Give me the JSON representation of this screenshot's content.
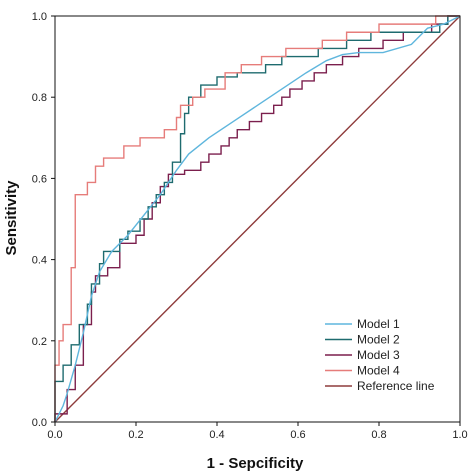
{
  "chart_data": {
    "type": "line",
    "xlabel": "1 - Sepcificity",
    "ylabel": "Sensitivity",
    "xlim": [
      0.0,
      1.0
    ],
    "ylim": [
      0.0,
      1.0
    ],
    "xticks": [
      "0.0",
      "0.2",
      "0.4",
      "0.6",
      "0.8",
      "1.0"
    ],
    "yticks": [
      "0.0",
      "0.2",
      "0.4",
      "0.6",
      "0.8",
      "1.0"
    ],
    "grid": false,
    "legend_position": "bottom-right",
    "series": [
      {
        "name": "Model 1",
        "color": "#5fb6dd",
        "step": false,
        "points": [
          [
            0,
            0
          ],
          [
            0.01,
            0.02
          ],
          [
            0.02,
            0.04
          ],
          [
            0.03,
            0.07
          ],
          [
            0.05,
            0.14
          ],
          [
            0.07,
            0.22
          ],
          [
            0.09,
            0.31
          ],
          [
            0.11,
            0.37
          ],
          [
            0.14,
            0.42
          ],
          [
            0.18,
            0.46
          ],
          [
            0.22,
            0.51
          ],
          [
            0.26,
            0.56
          ],
          [
            0.3,
            0.62
          ],
          [
            0.33,
            0.66
          ],
          [
            0.38,
            0.7
          ],
          [
            0.44,
            0.74
          ],
          [
            0.5,
            0.78
          ],
          [
            0.56,
            0.82
          ],
          [
            0.62,
            0.86
          ],
          [
            0.67,
            0.89
          ],
          [
            0.71,
            0.905
          ],
          [
            0.75,
            0.91
          ],
          [
            0.81,
            0.91
          ],
          [
            0.88,
            0.93
          ],
          [
            0.92,
            0.97
          ],
          [
            0.96,
            0.98
          ],
          [
            1.0,
            1.0
          ]
        ]
      },
      {
        "name": "Model 2",
        "color": "#1e6b6f",
        "step": true,
        "points": [
          [
            0,
            0
          ],
          [
            0,
            0.1
          ],
          [
            0.02,
            0.1
          ],
          [
            0.02,
            0.14
          ],
          [
            0.04,
            0.14
          ],
          [
            0.04,
            0.19
          ],
          [
            0.06,
            0.19
          ],
          [
            0.06,
            0.24
          ],
          [
            0.08,
            0.24
          ],
          [
            0.08,
            0.29
          ],
          [
            0.09,
            0.29
          ],
          [
            0.09,
            0.34
          ],
          [
            0.11,
            0.34
          ],
          [
            0.11,
            0.39
          ],
          [
            0.12,
            0.39
          ],
          [
            0.12,
            0.42
          ],
          [
            0.16,
            0.42
          ],
          [
            0.16,
            0.45
          ],
          [
            0.18,
            0.45
          ],
          [
            0.18,
            0.47
          ],
          [
            0.21,
            0.47
          ],
          [
            0.21,
            0.5
          ],
          [
            0.23,
            0.5
          ],
          [
            0.23,
            0.53
          ],
          [
            0.25,
            0.53
          ],
          [
            0.25,
            0.56
          ],
          [
            0.27,
            0.56
          ],
          [
            0.27,
            0.59
          ],
          [
            0.29,
            0.59
          ],
          [
            0.29,
            0.64
          ],
          [
            0.31,
            0.64
          ],
          [
            0.31,
            0.71
          ],
          [
            0.32,
            0.71
          ],
          [
            0.32,
            0.76
          ],
          [
            0.33,
            0.76
          ],
          [
            0.33,
            0.8
          ],
          [
            0.36,
            0.8
          ],
          [
            0.36,
            0.83
          ],
          [
            0.4,
            0.83
          ],
          [
            0.4,
            0.85
          ],
          [
            0.45,
            0.85
          ],
          [
            0.45,
            0.86
          ],
          [
            0.52,
            0.86
          ],
          [
            0.52,
            0.88
          ],
          [
            0.56,
            0.88
          ],
          [
            0.56,
            0.9
          ],
          [
            0.65,
            0.9
          ],
          [
            0.65,
            0.92
          ],
          [
            0.72,
            0.92
          ],
          [
            0.72,
            0.94
          ],
          [
            0.78,
            0.94
          ],
          [
            0.78,
            0.96
          ],
          [
            0.95,
            0.96
          ],
          [
            0.95,
            0.98
          ],
          [
            0.97,
            0.98
          ],
          [
            0.97,
            1.0
          ],
          [
            1.0,
            1.0
          ]
        ]
      },
      {
        "name": "Model 3",
        "color": "#7b1f4d",
        "step": true,
        "points": [
          [
            0,
            0
          ],
          [
            0,
            0.02
          ],
          [
            0.03,
            0.02
          ],
          [
            0.03,
            0.08
          ],
          [
            0.05,
            0.08
          ],
          [
            0.05,
            0.14
          ],
          [
            0.07,
            0.14
          ],
          [
            0.07,
            0.24
          ],
          [
            0.09,
            0.24
          ],
          [
            0.09,
            0.32
          ],
          [
            0.1,
            0.32
          ],
          [
            0.1,
            0.36
          ],
          [
            0.13,
            0.36
          ],
          [
            0.13,
            0.38
          ],
          [
            0.16,
            0.38
          ],
          [
            0.16,
            0.44
          ],
          [
            0.2,
            0.44
          ],
          [
            0.2,
            0.46
          ],
          [
            0.22,
            0.46
          ],
          [
            0.22,
            0.5
          ],
          [
            0.24,
            0.5
          ],
          [
            0.24,
            0.54
          ],
          [
            0.26,
            0.54
          ],
          [
            0.26,
            0.58
          ],
          [
            0.28,
            0.58
          ],
          [
            0.28,
            0.61
          ],
          [
            0.32,
            0.61
          ],
          [
            0.32,
            0.62
          ],
          [
            0.36,
            0.62
          ],
          [
            0.36,
            0.64
          ],
          [
            0.38,
            0.64
          ],
          [
            0.38,
            0.66
          ],
          [
            0.41,
            0.66
          ],
          [
            0.41,
            0.68
          ],
          [
            0.43,
            0.68
          ],
          [
            0.43,
            0.7
          ],
          [
            0.45,
            0.7
          ],
          [
            0.45,
            0.72
          ],
          [
            0.48,
            0.72
          ],
          [
            0.48,
            0.74
          ],
          [
            0.51,
            0.74
          ],
          [
            0.51,
            0.76
          ],
          [
            0.54,
            0.76
          ],
          [
            0.54,
            0.78
          ],
          [
            0.56,
            0.78
          ],
          [
            0.56,
            0.8
          ],
          [
            0.58,
            0.8
          ],
          [
            0.58,
            0.82
          ],
          [
            0.61,
            0.82
          ],
          [
            0.61,
            0.84
          ],
          [
            0.64,
            0.84
          ],
          [
            0.64,
            0.86
          ],
          [
            0.67,
            0.86
          ],
          [
            0.67,
            0.88
          ],
          [
            0.71,
            0.88
          ],
          [
            0.71,
            0.9
          ],
          [
            0.75,
            0.9
          ],
          [
            0.75,
            0.92
          ],
          [
            0.81,
            0.92
          ],
          [
            0.81,
            0.94
          ],
          [
            0.86,
            0.94
          ],
          [
            0.86,
            0.96
          ],
          [
            0.93,
            0.96
          ],
          [
            0.93,
            0.98
          ],
          [
            0.97,
            0.98
          ],
          [
            0.97,
            1.0
          ],
          [
            1.0,
            1.0
          ]
        ]
      },
      {
        "name": "Model 4",
        "color": "#e67c7a",
        "step": true,
        "points": [
          [
            0,
            0
          ],
          [
            0,
            0.14
          ],
          [
            0.01,
            0.14
          ],
          [
            0.01,
            0.2
          ],
          [
            0.02,
            0.2
          ],
          [
            0.02,
            0.24
          ],
          [
            0.04,
            0.24
          ],
          [
            0.04,
            0.38
          ],
          [
            0.05,
            0.38
          ],
          [
            0.05,
            0.56
          ],
          [
            0.08,
            0.56
          ],
          [
            0.08,
            0.59
          ],
          [
            0.1,
            0.59
          ],
          [
            0.1,
            0.63
          ],
          [
            0.12,
            0.63
          ],
          [
            0.12,
            0.65
          ],
          [
            0.17,
            0.65
          ],
          [
            0.17,
            0.68
          ],
          [
            0.21,
            0.68
          ],
          [
            0.21,
            0.7
          ],
          [
            0.27,
            0.7
          ],
          [
            0.27,
            0.72
          ],
          [
            0.3,
            0.72
          ],
          [
            0.3,
            0.75
          ],
          [
            0.31,
            0.75
          ],
          [
            0.31,
            0.78
          ],
          [
            0.34,
            0.78
          ],
          [
            0.34,
            0.8
          ],
          [
            0.37,
            0.8
          ],
          [
            0.37,
            0.82
          ],
          [
            0.42,
            0.82
          ],
          [
            0.42,
            0.86
          ],
          [
            0.46,
            0.86
          ],
          [
            0.46,
            0.88
          ],
          [
            0.51,
            0.88
          ],
          [
            0.51,
            0.9
          ],
          [
            0.57,
            0.9
          ],
          [
            0.57,
            0.92
          ],
          [
            0.66,
            0.92
          ],
          [
            0.66,
            0.94
          ],
          [
            0.72,
            0.94
          ],
          [
            0.72,
            0.96
          ],
          [
            0.8,
            0.96
          ],
          [
            0.8,
            0.98
          ],
          [
            0.94,
            0.98
          ],
          [
            0.94,
            1.0
          ],
          [
            1.0,
            1.0
          ]
        ]
      },
      {
        "name": "Reference line",
        "color": "#8e3b3b",
        "step": false,
        "points": [
          [
            0,
            0
          ],
          [
            1,
            1
          ]
        ]
      }
    ]
  }
}
